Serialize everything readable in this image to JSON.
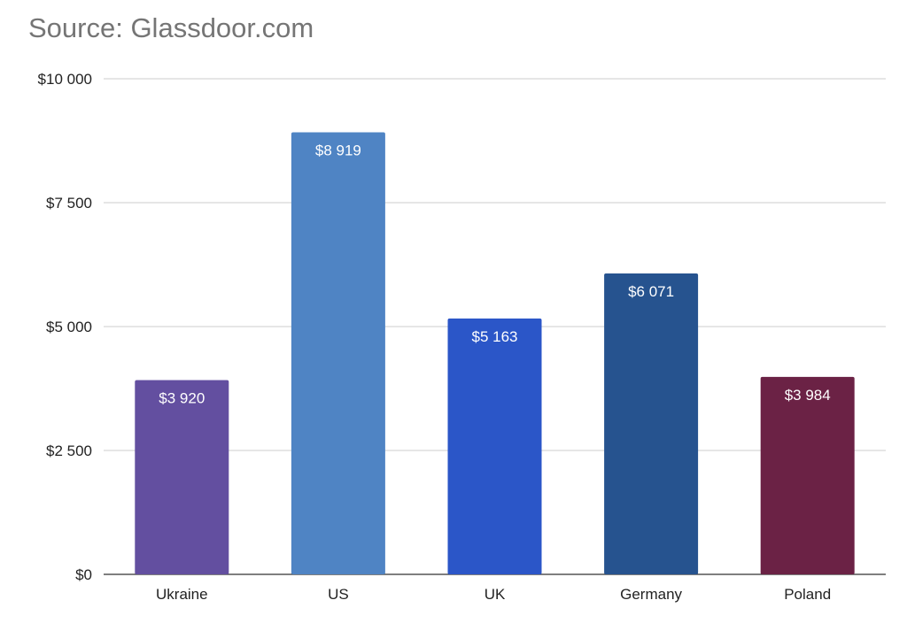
{
  "header": {
    "source": "Source: Glassdoor.com"
  },
  "chart_data": {
    "type": "bar",
    "title": "",
    "xlabel": "",
    "ylabel": "",
    "categories": [
      "Ukraine",
      "US",
      "UK",
      "Germany",
      "Poland"
    ],
    "values": [
      3920,
      8919,
      5163,
      6071,
      3984
    ],
    "data_labels": [
      "$3 920",
      "$8 919",
      "$5 163",
      "$6 071",
      "$3 984"
    ],
    "bar_colors": [
      "#634fa0",
      "#4f84c4",
      "#2b56c8",
      "#26538f",
      "#6b2245"
    ],
    "ylim": [
      0,
      10000
    ],
    "yticks": [
      0,
      2500,
      5000,
      7500,
      10000
    ],
    "ytick_labels": [
      "$0",
      "$2 500",
      "$5 000",
      "$7 500",
      "$10 000"
    ],
    "grid": true,
    "legend": "none"
  }
}
